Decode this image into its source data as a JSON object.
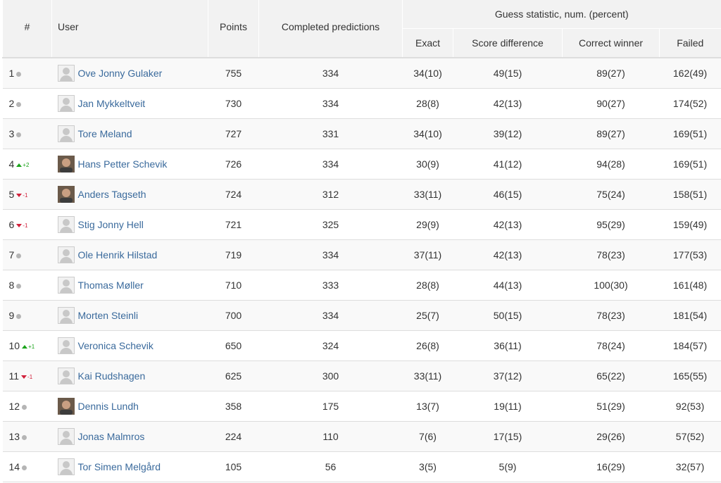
{
  "colors": {
    "link": "#3a6a9c",
    "up": "#1aa41a",
    "down": "#d11f3a",
    "neutral_dot": "#b5b5b5",
    "header_bg": "#f2f2f2"
  },
  "header": {
    "rank": "#",
    "user": "User",
    "points": "Points",
    "completed": "Completed predictions",
    "guess_group": "Guess statistic, num. (percent)",
    "exact": "Exact",
    "score_diff": "Score difference",
    "correct_winner": "Correct winner",
    "failed": "Failed"
  },
  "rows": [
    {
      "rank": "1",
      "trend": "same",
      "change": "",
      "avatar": "default-avatar-icon",
      "name": "Ove Jonny Gulaker",
      "points": "755",
      "completed": "334",
      "exact": "34(10)",
      "score_diff": "49(15)",
      "correct_winner": "89(27)",
      "failed": "162(49)"
    },
    {
      "rank": "2",
      "trend": "same",
      "change": "",
      "avatar": "default-avatar-icon",
      "name": "Jan Mykkeltveit",
      "points": "730",
      "completed": "334",
      "exact": "28(8)",
      "score_diff": "42(13)",
      "correct_winner": "90(27)",
      "failed": "174(52)"
    },
    {
      "rank": "3",
      "trend": "same",
      "change": "",
      "avatar": "default-avatar-icon",
      "name": "Tore Meland",
      "points": "727",
      "completed": "331",
      "exact": "34(10)",
      "score_diff": "39(12)",
      "correct_winner": "89(27)",
      "failed": "169(51)"
    },
    {
      "rank": "4",
      "trend": "up",
      "change": "+2",
      "avatar": "photo-avatar-icon",
      "name": "Hans Petter Schevik",
      "points": "726",
      "completed": "334",
      "exact": "30(9)",
      "score_diff": "41(12)",
      "correct_winner": "94(28)",
      "failed": "169(51)"
    },
    {
      "rank": "5",
      "trend": "down",
      "change": "-1",
      "avatar": "photo-avatar-icon",
      "name": "Anders Tagseth",
      "points": "724",
      "completed": "312",
      "exact": "33(11)",
      "score_diff": "46(15)",
      "correct_winner": "75(24)",
      "failed": "158(51)"
    },
    {
      "rank": "6",
      "trend": "down",
      "change": "-1",
      "avatar": "default-avatar-icon",
      "name": "Stig Jonny Hell",
      "points": "721",
      "completed": "325",
      "exact": "29(9)",
      "score_diff": "42(13)",
      "correct_winner": "95(29)",
      "failed": "159(49)"
    },
    {
      "rank": "7",
      "trend": "same",
      "change": "",
      "avatar": "default-avatar-icon",
      "name": "Ole Henrik Hilstad",
      "points": "719",
      "completed": "334",
      "exact": "37(11)",
      "score_diff": "42(13)",
      "correct_winner": "78(23)",
      "failed": "177(53)"
    },
    {
      "rank": "8",
      "trend": "same",
      "change": "",
      "avatar": "default-avatar-icon",
      "name": "Thomas Møller",
      "points": "710",
      "completed": "333",
      "exact": "28(8)",
      "score_diff": "44(13)",
      "correct_winner": "100(30)",
      "failed": "161(48)"
    },
    {
      "rank": "9",
      "trend": "same",
      "change": "",
      "avatar": "default-avatar-icon",
      "name": "Morten Steinli",
      "points": "700",
      "completed": "334",
      "exact": "25(7)",
      "score_diff": "50(15)",
      "correct_winner": "78(23)",
      "failed": "181(54)"
    },
    {
      "rank": "10",
      "trend": "up",
      "change": "+1",
      "avatar": "default-avatar-icon",
      "name": "Veronica Schevik",
      "points": "650",
      "completed": "324",
      "exact": "26(8)",
      "score_diff": "36(11)",
      "correct_winner": "78(24)",
      "failed": "184(57)"
    },
    {
      "rank": "11",
      "trend": "down",
      "change": "-1",
      "avatar": "default-avatar-icon",
      "name": "Kai Rudshagen",
      "points": "625",
      "completed": "300",
      "exact": "33(11)",
      "score_diff": "37(12)",
      "correct_winner": "65(22)",
      "failed": "165(55)"
    },
    {
      "rank": "12",
      "trend": "same",
      "change": "",
      "avatar": "photo-avatar-icon",
      "name": "Dennis Lundh",
      "points": "358",
      "completed": "175",
      "exact": "13(7)",
      "score_diff": "19(11)",
      "correct_winner": "51(29)",
      "failed": "92(53)"
    },
    {
      "rank": "13",
      "trend": "same",
      "change": "",
      "avatar": "default-avatar-icon",
      "name": "Jonas Malmros",
      "points": "224",
      "completed": "110",
      "exact": "7(6)",
      "score_diff": "17(15)",
      "correct_winner": "29(26)",
      "failed": "57(52)"
    },
    {
      "rank": "14",
      "trend": "same",
      "change": "",
      "avatar": "default-avatar-icon",
      "name": "Tor Simen Melgård",
      "points": "105",
      "completed": "56",
      "exact": "3(5)",
      "score_diff": "5(9)",
      "correct_winner": "16(29)",
      "failed": "32(57)"
    }
  ]
}
